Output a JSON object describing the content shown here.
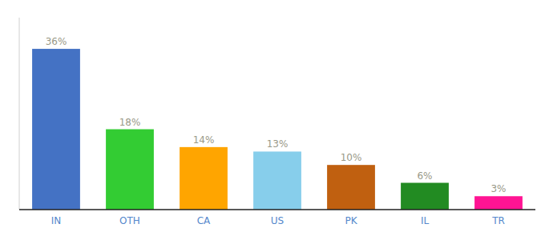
{
  "chart_data": {
    "type": "bar",
    "categories": [
      "IN",
      "OTH",
      "CA",
      "US",
      "PK",
      "IL",
      "TR"
    ],
    "values": [
      36,
      18,
      14,
      13,
      10,
      6,
      3
    ],
    "value_labels": [
      "36%",
      "18%",
      "14%",
      "13%",
      "10%",
      "6%",
      "3%"
    ],
    "data_labels": true,
    "colors": [
      "#4472C4",
      "#33CC33",
      "#FFA500",
      "#87CEEB",
      "#C06010",
      "#228B22",
      "#FF1493"
    ],
    "ylim": [
      0,
      43
    ],
    "tick_labels": "x",
    "grid": false
  }
}
